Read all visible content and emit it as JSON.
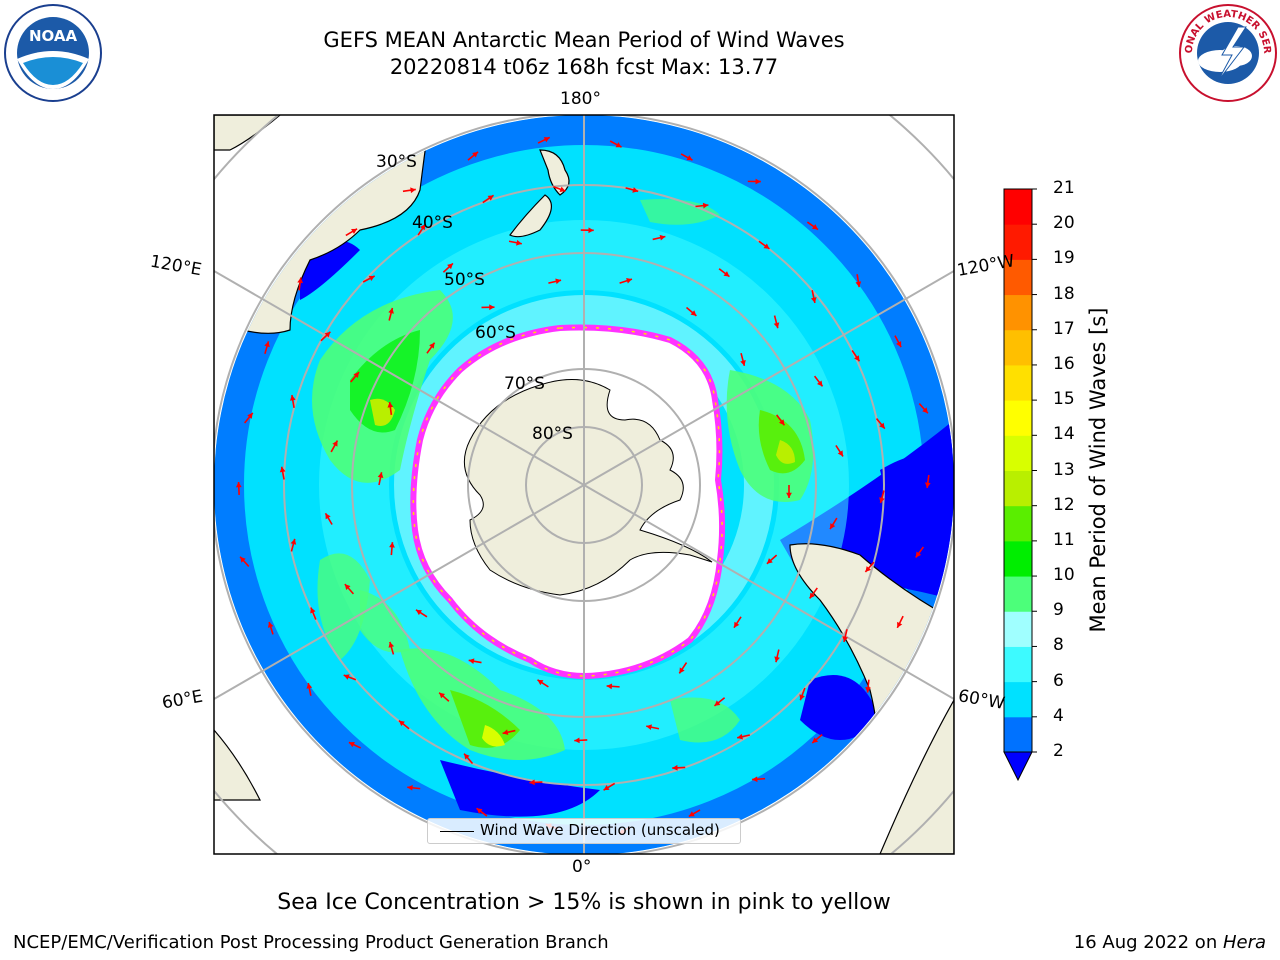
{
  "header": {
    "title_line1": "GEFS MEAN Antarctic Mean Period of Wind Waves",
    "title_line2": "20220814 t06z 168h fcst   Max: 13.77"
  },
  "logos": {
    "noaa_text": "NOAA",
    "nws_text": "NATIONAL WEATHER SERVICE"
  },
  "map": {
    "longitude_labels": {
      "top": "180°",
      "bottom": "0°",
      "left_upper": "120°E",
      "left_lower": "60°E",
      "right_upper": "120°W",
      "right_lower": "60°W"
    },
    "latitude_labels": [
      "30°S",
      "40°S",
      "50°S",
      "60°S",
      "70°S",
      "80°S"
    ],
    "legend_label": "Wind Wave Direction (unscaled)",
    "colors": {
      "land": "#efeedc",
      "ocean_deep": "#0000ff",
      "ocean_mid": "#00e1ff",
      "ice_edge": "#ff33ff",
      "arrow": "#ff0000"
    }
  },
  "colorbar": {
    "label": "Mean Period of Wind Waves [s]",
    "ticks": [
      "2",
      "4",
      "6",
      "8",
      "9",
      "10",
      "11",
      "12",
      "13",
      "14",
      "15",
      "16",
      "17",
      "18",
      "19",
      "20",
      "21"
    ],
    "colors": [
      "#0000ff",
      "#0072ff",
      "#00e1ff",
      "#3dfaff",
      "#a0ffff",
      "#4cff7a",
      "#00ee00",
      "#5aee00",
      "#b9ef00",
      "#d8ff00",
      "#ffff00",
      "#ffe000",
      "#ffbf00",
      "#ff9200",
      "#ff5a00",
      "#ff1a00",
      "#ff0000"
    ],
    "under_color": "#0000ff"
  },
  "chart_data": {
    "type": "heatmap",
    "title": "GEFS MEAN Antarctic Mean Period of Wind Waves",
    "subtitle": "20220814 t06z 168h fcst   Max: 13.77",
    "variable": "Mean Period of Wind Waves [s]",
    "max_value": 13.77,
    "colorbar_range": [
      2,
      21
    ],
    "projection": "south-polar-stereographic"
  },
  "footer": {
    "note": "Sea Ice Concentration > 15% is shown in pink to yellow",
    "org": "NCEP/EMC/Verification Post Processing Product Generation Branch",
    "date": "16 Aug 2022 on ",
    "host": "Hera"
  }
}
